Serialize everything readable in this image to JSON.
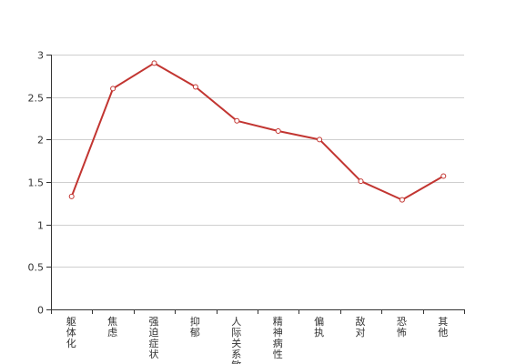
{
  "chart_data": {
    "type": "line",
    "categories": [
      "躯体化",
      "焦虑",
      "强迫症状",
      "抑郁",
      "人际关系敏感",
      "精神病性",
      "偏执",
      "敌对",
      "恐怖",
      "其他"
    ],
    "series": [
      {
        "color": "#c23531",
        "values": [
          1.33,
          2.6,
          2.9,
          2.62,
          2.22,
          2.1,
          2.0,
          1.51,
          1.29,
          1.57
        ]
      }
    ],
    "ylim": [
      0,
      3
    ],
    "yticks": [
      "0",
      "0.5",
      "1",
      "1.5",
      "2",
      "2.5",
      "3"
    ],
    "grid": true,
    "legend": "none"
  }
}
